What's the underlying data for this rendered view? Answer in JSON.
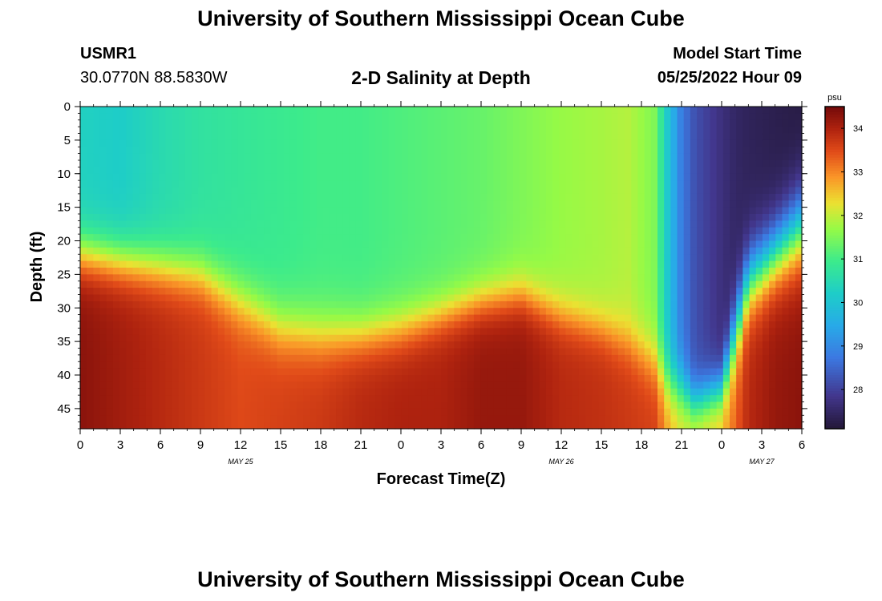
{
  "header": {
    "title": "University of Southern Mississippi Ocean Cube",
    "station": "USMR1",
    "coords": "30.0770N  88.5830W",
    "subtitle": "2-D Salinity at Depth",
    "start_label": "Model Start Time",
    "start_value": "05/25/2022 Hour 09"
  },
  "footer": {
    "title": "University of Southern Mississippi Ocean Cube"
  },
  "chart_data": {
    "type": "heatmap",
    "xlabel": "Forecast Time(Z)",
    "ylabel": "Depth (ft)",
    "x_range_hours": [
      0,
      54
    ],
    "y_range_ft": [
      0,
      48
    ],
    "y_reversed": true,
    "x_tick_labels": [
      "0",
      "3",
      "6",
      "9",
      "12",
      "15",
      "18",
      "21",
      "0",
      "3",
      "6",
      "9",
      "12",
      "15",
      "18",
      "21",
      "0",
      "3",
      "6"
    ],
    "y_ticks": [
      0,
      5,
      10,
      15,
      20,
      25,
      30,
      35,
      40,
      45
    ],
    "date_labels": [
      {
        "label": "MAY 25",
        "hour": 12
      },
      {
        "label": "MAY 26",
        "hour": 36
      },
      {
        "label": "MAY 27",
        "hour": 51
      }
    ],
    "colorbar": {
      "units": "psu",
      "range": [
        27.1,
        34.5
      ],
      "ticks": [
        28,
        29,
        30,
        31,
        32,
        33,
        34
      ]
    },
    "columns": [
      {
        "hour": 0,
        "surface": 30.3,
        "mix_depth": 22,
        "thick": 9,
        "bottom": 34.3
      },
      {
        "hour": 3,
        "surface": 30.2,
        "mix_depth": 23,
        "thick": 9,
        "bottom": 34.1
      },
      {
        "hour": 6,
        "surface": 30.5,
        "mix_depth": 24,
        "thick": 9,
        "bottom": 33.9
      },
      {
        "hour": 9,
        "surface": 30.7,
        "mix_depth": 25,
        "thick": 9,
        "bottom": 33.7
      },
      {
        "hour": 12,
        "surface": 30.8,
        "mix_depth": 29,
        "thick": 10,
        "bottom": 33.5
      },
      {
        "hour": 15,
        "surface": 30.9,
        "mix_depth": 33,
        "thick": 10,
        "bottom": 33.6
      },
      {
        "hour": 18,
        "surface": 31.0,
        "mix_depth": 34,
        "thick": 10,
        "bottom": 33.7
      },
      {
        "hour": 21,
        "surface": 31.0,
        "mix_depth": 34,
        "thick": 9,
        "bottom": 33.9
      },
      {
        "hour": 24,
        "surface": 31.1,
        "mix_depth": 33,
        "thick": 9,
        "bottom": 34.0
      },
      {
        "hour": 27,
        "surface": 31.2,
        "mix_depth": 31,
        "thick": 8,
        "bottom": 34.0
      },
      {
        "hour": 30,
        "surface": 31.3,
        "mix_depth": 29,
        "thick": 8,
        "bottom": 34.2
      },
      {
        "hour": 33,
        "surface": 31.5,
        "mix_depth": 28,
        "thick": 8,
        "bottom": 34.2
      },
      {
        "hour": 36,
        "surface": 31.7,
        "mix_depth": 31,
        "thick": 8,
        "bottom": 33.9
      },
      {
        "hour": 39,
        "surface": 31.8,
        "mix_depth": 33,
        "thick": 8,
        "bottom": 33.8
      },
      {
        "hour": 41,
        "surface": 31.9,
        "mix_depth": 35,
        "thick": 9,
        "bottom": 33.7
      },
      {
        "hour": 43,
        "surface": 31.5,
        "mix_depth": 38,
        "thick": 10,
        "bottom": 33.6
      },
      {
        "hour": 44,
        "surface": 30.0,
        "mix_depth": 41,
        "thick": 10,
        "bottom": 32.8
      },
      {
        "hour": 45,
        "surface": 28.8,
        "mix_depth": 42,
        "thick": 9,
        "bottom": 32.3
      },
      {
        "hour": 46,
        "surface": 28.2,
        "mix_depth": 44,
        "thick": 8,
        "bottom": 32.3
      },
      {
        "hour": 48,
        "surface": 27.7,
        "mix_depth": 42,
        "thick": 8,
        "bottom": 32.6
      },
      {
        "hour": 49,
        "surface": 27.5,
        "mix_depth": 34,
        "thick": 12,
        "bottom": 33.3
      },
      {
        "hour": 50,
        "surface": 27.4,
        "mix_depth": 26,
        "thick": 12,
        "bottom": 33.9
      },
      {
        "hour": 52,
        "surface": 27.3,
        "mix_depth": 22,
        "thick": 12,
        "bottom": 34.2
      },
      {
        "hour": 54,
        "surface": 27.2,
        "mix_depth": 18,
        "thick": 14,
        "bottom": 34.3
      }
    ]
  }
}
